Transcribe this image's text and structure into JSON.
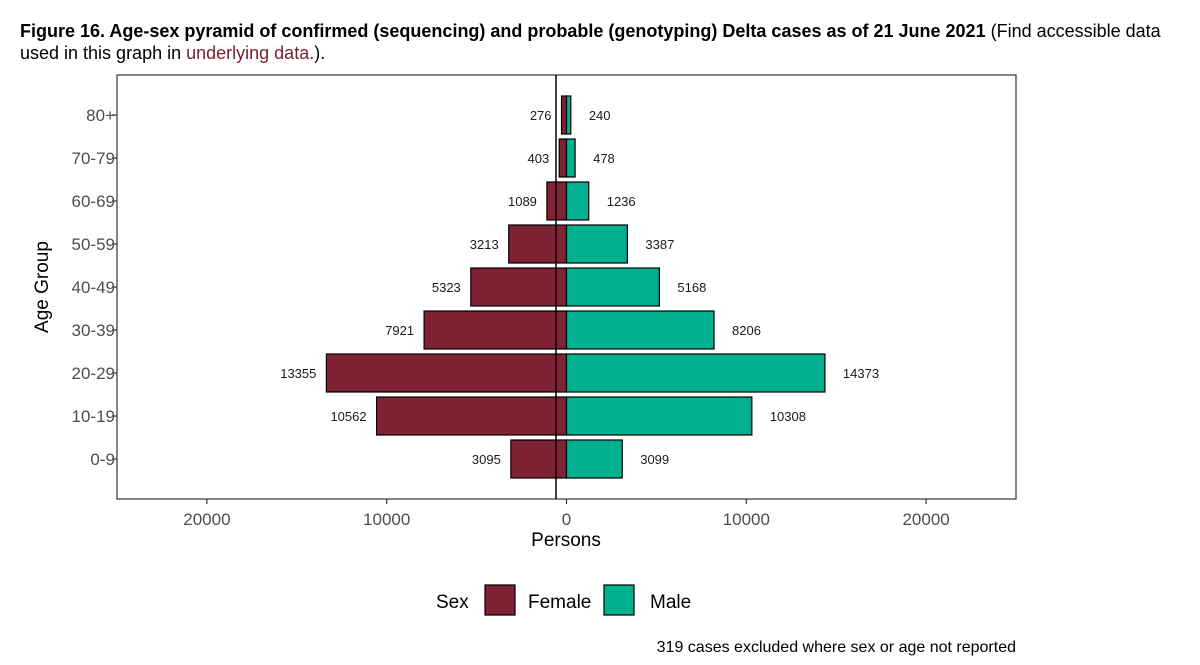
{
  "caption": {
    "bold_text": "Figure 16. Age-sex pyramid of confirmed (sequencing) and probable (genotyping) Delta cases as of 21 June 2021",
    "text_before_link": " (Find accessible data used in this graph in ",
    "link_text": "underlying data.",
    "text_after_link": ")."
  },
  "chart_data": {
    "type": "bar",
    "orientation": "horizontal-pyramid",
    "title": "",
    "xlabel": "Persons",
    "ylabel": "Age Group",
    "categories": [
      "0-9",
      "10-19",
      "20-29",
      "30-39",
      "40-49",
      "50-59",
      "60-69",
      "70-79",
      "80+"
    ],
    "series": [
      {
        "name": "Female",
        "color": "#7f2233",
        "values": [
          3095,
          10562,
          13355,
          7921,
          5323,
          3213,
          1089,
          403,
          276
        ]
      },
      {
        "name": "Male",
        "color": "#00b08e",
        "values": [
          3099,
          10308,
          14373,
          8206,
          5168,
          3387,
          1236,
          478,
          240
        ]
      }
    ],
    "xlim": [
      -25000,
      25000
    ],
    "x_ticks": [
      -20000,
      -10000,
      0,
      10000,
      20000
    ],
    "x_tick_labels": [
      "20000",
      "10000",
      "0",
      "10000",
      "20000"
    ],
    "legend": {
      "title": "Sex",
      "placement": "bottom"
    },
    "grid": false,
    "note": "319 cases excluded where sex or age not reported"
  }
}
